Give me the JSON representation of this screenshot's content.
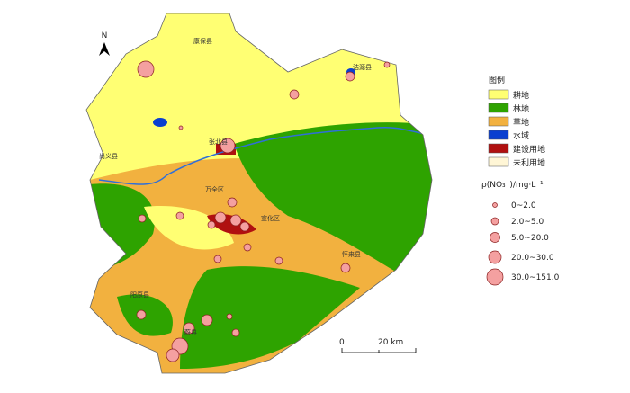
{
  "north": "N",
  "legend": {
    "title": "图例",
    "classes": [
      {
        "label": "耕地",
        "color": "#ffff73"
      },
      {
        "label": "林地",
        "color": "#2ea300"
      },
      {
        "label": "草地",
        "color": "#f2b13f"
      },
      {
        "label": "水域",
        "color": "#0a3fd0"
      },
      {
        "label": "建设用地",
        "color": "#b01010"
      },
      {
        "label": "未利用地",
        "color": "#fff6d6"
      }
    ]
  },
  "concentration_legend": {
    "title": "ρ(NO₃⁻)/mg·L⁻¹",
    "classes": [
      "0~2.0",
      "2.0~5.0",
      "5.0~20.0",
      "20.0~30.0",
      "30.0~151.0"
    ],
    "color": "#f4a0a0"
  },
  "scale_bar": {
    "start": "0",
    "end": "20 km"
  },
  "places": [
    "康保县",
    "沽源县",
    "张北县",
    "尚义县",
    "万全区",
    "宣化区",
    "怀来县",
    "阳原县",
    "蔚县"
  ]
}
